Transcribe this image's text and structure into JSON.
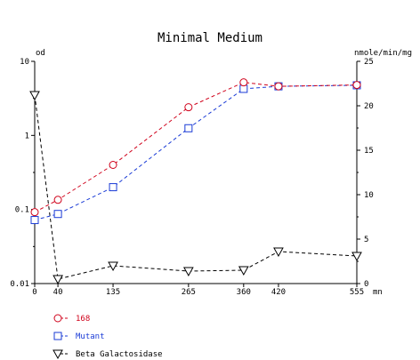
{
  "chart_data": {
    "type": "line",
    "title": "Minimal Medium",
    "y_left_unit": "od",
    "y_right_unit": "nmole/min/mg",
    "x_unit": "mn",
    "x_ticks": [
      0,
      40,
      135,
      265,
      360,
      420,
      555
    ],
    "y_left_scale": "log",
    "y_left_range": [
      0.01,
      10
    ],
    "y_left_ticks": [
      "10",
      "1",
      "0.1",
      "0.01"
    ],
    "y_right_range": [
      0,
      25
    ],
    "y_right_ticks": [
      "25",
      "20",
      "15",
      "10",
      "5",
      "0"
    ],
    "grid": false,
    "legend_position": "bottom-left",
    "series": [
      {
        "name": "168",
        "axis": "left",
        "color": "#d0021b",
        "marker": "circle",
        "line": "dashed",
        "x": [
          0,
          40,
          135,
          265,
          360,
          420,
          555
        ],
        "y": [
          0.092,
          0.135,
          0.4,
          2.4,
          5.2,
          4.6,
          4.8
        ]
      },
      {
        "name": "Mutant",
        "axis": "left",
        "color": "#1a3bd6",
        "marker": "square",
        "line": "dashed",
        "x": [
          0,
          40,
          135,
          265,
          360,
          420,
          555
        ],
        "y": [
          0.072,
          0.087,
          0.2,
          1.25,
          4.25,
          4.6,
          4.75
        ]
      },
      {
        "name": "Beta Galactosidase",
        "axis": "right",
        "color": "#000000",
        "marker": "triangle-down",
        "line": "dashed",
        "x": [
          0,
          40,
          135,
          265,
          360,
          420,
          555
        ],
        "y": [
          21.2,
          0.5,
          2.0,
          1.4,
          1.5,
          3.6,
          3.1
        ]
      }
    ]
  }
}
